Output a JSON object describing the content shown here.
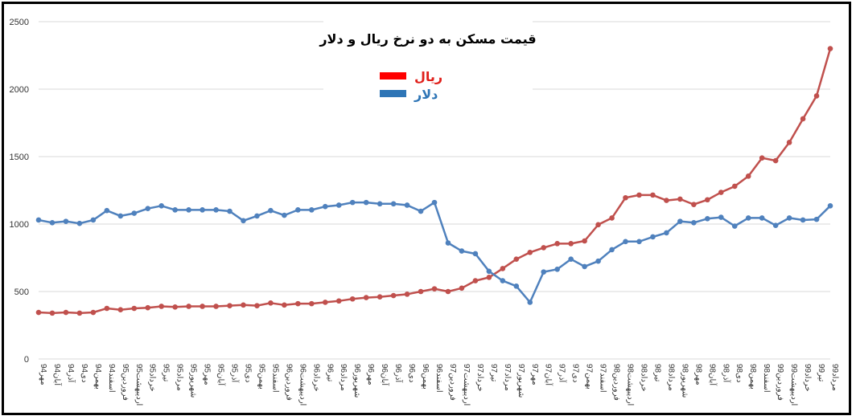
{
  "chart_data": {
    "type": "line",
    "title": "قیمت مسکن به دو نرخ ریال و دلار",
    "ylim": [
      0,
      2500
    ],
    "yticks": [
      0,
      500,
      1000,
      1500,
      2000,
      2500
    ],
    "grid": true,
    "legend_position": "top-center",
    "categories": [
      "مهر94",
      "آبان94",
      "آذر94",
      "دی94",
      "بهمن94",
      "اسفند94",
      "فروردین95",
      "اردیبهشت95",
      "خرداد95",
      "تیر95",
      "مرداد95",
      "شهریور95",
      "مهر95",
      "آبان95",
      "آذر95",
      "دی95",
      "بهمن95",
      "اسفند95",
      "فروردین96",
      "اردیبهشت96",
      "خرداد96",
      "تیر96",
      "مرداد96",
      "شهریور96",
      "مهر96",
      "آبان96",
      "آذر96",
      "دی96",
      "بهمن96",
      "اسفند96",
      "فروردین97",
      "اردیبهشت97",
      "خرداد97",
      "تیر97",
      "مرداد97",
      "شهریور97",
      "مهر97",
      "آبان97",
      "آذر97",
      "دی97",
      "بهمن97",
      "اسفند97",
      "فروردین98",
      "اردیبهشت98",
      "خرداد98",
      "تیر98",
      "مرداد98",
      "شهریور98",
      "مهر98",
      "آبان98",
      "آذر98",
      "دی98",
      "بهمن98",
      "اسفند98",
      "فروردین99",
      "اردیبهشت99",
      "خرداد99",
      "تیر99",
      "مرداد99"
    ],
    "series": [
      {
        "name": "ریال",
        "color": "#c0504d",
        "values": [
          345,
          340,
          345,
          340,
          345,
          375,
          365,
          375,
          380,
          390,
          385,
          390,
          390,
          390,
          395,
          400,
          395,
          415,
          400,
          410,
          410,
          420,
          430,
          445,
          455,
          460,
          470,
          480,
          500,
          520,
          500,
          525,
          580,
          605,
          670,
          740,
          790,
          825,
          855,
          855,
          875,
          995,
          1045,
          1195,
          1215,
          1215,
          1175,
          1185,
          1145,
          1180,
          1235,
          1280,
          1355,
          1490,
          1470,
          1605,
          1780,
          1950,
          2300
        ]
      },
      {
        "name": "دلار",
        "color": "#4f81bd",
        "values": [
          1030,
          1010,
          1020,
          1005,
          1030,
          1100,
          1060,
          1080,
          1115,
          1135,
          1105,
          1105,
          1105,
          1105,
          1095,
          1025,
          1060,
          1100,
          1065,
          1105,
          1105,
          1130,
          1140,
          1160,
          1160,
          1150,
          1150,
          1140,
          1095,
          1160,
          860,
          800,
          780,
          650,
          580,
          540,
          420,
          645,
          665,
          740,
          685,
          725,
          810,
          870,
          870,
          905,
          935,
          1020,
          1010,
          1040,
          1050,
          985,
          1045,
          1045,
          990,
          1045,
          1030,
          1035,
          1135
        ]
      }
    ]
  }
}
